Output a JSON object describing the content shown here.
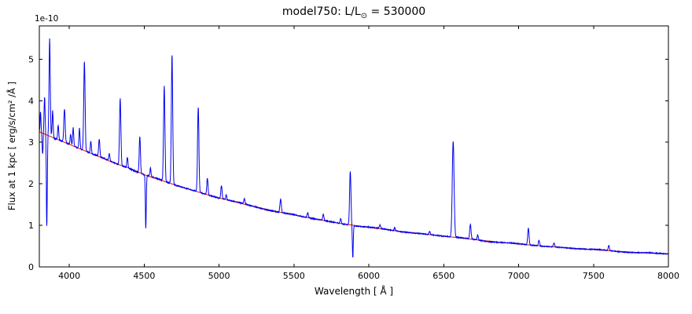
{
  "title_parts": {
    "main": "model750: L/L",
    "sub": "⊙",
    "rest": " = 530000"
  },
  "chart_data": {
    "type": "line",
    "title": "model750: L/L⊙ = 530000",
    "xlabel": "Wavelength [ Å ]",
    "ylabel": "Flux at 1 kpc [ erg/s/cm² /Å ]",
    "offset_text": "1e-10",
    "xlim": [
      3800,
      8000
    ],
    "ylim": [
      0,
      5.8
    ],
    "x_ticks": [
      4000,
      4500,
      5000,
      5500,
      6000,
      6500,
      7000,
      7500,
      8000
    ],
    "y_ticks": [
      0,
      1,
      2,
      3,
      4,
      5
    ],
    "grid": false,
    "legend": null,
    "series": [
      {
        "name": "spectrum",
        "color": "#0000ee",
        "description": "blue stellar spectrum = continuum + gaussian emission/absorption lines + noise"
      },
      {
        "name": "continuum",
        "color": "#ff1a00",
        "description": "smooth red continuum fit declining from ~3.25e-10 at 3800 Å to ~0.31e-10 at 8000 Å"
      }
    ],
    "continuum_points": [
      [
        3800,
        3.25
      ],
      [
        3900,
        3.1
      ],
      [
        4000,
        2.95
      ],
      [
        4100,
        2.8
      ],
      [
        4200,
        2.65
      ],
      [
        4300,
        2.5
      ],
      [
        4400,
        2.38
      ],
      [
        4500,
        2.22
      ],
      [
        4600,
        2.1
      ],
      [
        4700,
        1.98
      ],
      [
        4800,
        1.87
      ],
      [
        4900,
        1.76
      ],
      [
        5000,
        1.66
      ],
      [
        5200,
        1.48
      ],
      [
        5400,
        1.32
      ],
      [
        5600,
        1.18
      ],
      [
        5800,
        1.05
      ],
      [
        6000,
        0.95
      ],
      [
        6200,
        0.86
      ],
      [
        6400,
        0.78
      ],
      [
        6600,
        0.7
      ],
      [
        6800,
        0.62
      ],
      [
        7000,
        0.55
      ],
      [
        7200,
        0.49
      ],
      [
        7400,
        0.44
      ],
      [
        7600,
        0.39
      ],
      [
        7800,
        0.345
      ],
      [
        8000,
        0.31
      ]
    ],
    "emission_lines": [
      [
        3808,
        0.5,
        3.0
      ],
      [
        3822,
        -0.5,
        3.0
      ],
      [
        3835,
        0.9,
        3.5
      ],
      [
        3850,
        -2.2,
        3.0
      ],
      [
        3869,
        2.35,
        4.0
      ],
      [
        3889,
        0.65,
        3.5
      ],
      [
        3926,
        0.35,
        3.5
      ],
      [
        3968,
        0.8,
        4.5
      ],
      [
        4009,
        0.25,
        3.5
      ],
      [
        4026,
        0.45,
        3.5
      ],
      [
        4068,
        0.5,
        3.5
      ],
      [
        4101,
        2.15,
        4.5
      ],
      [
        4144,
        0.28,
        3.5
      ],
      [
        4200,
        0.42,
        4.0
      ],
      [
        4267,
        0.18,
        3.5
      ],
      [
        4340,
        1.62,
        4.5
      ],
      [
        4388,
        0.25,
        3.5
      ],
      [
        4471,
        0.88,
        4.0
      ],
      [
        4511,
        -1.28,
        3.0
      ],
      [
        4542,
        0.2,
        3.5
      ],
      [
        4634,
        2.3,
        4.5
      ],
      [
        4686,
        3.1,
        4.5
      ],
      [
        4861,
        2.05,
        4.5
      ],
      [
        4922,
        0.4,
        4.0
      ],
      [
        5016,
        0.32,
        4.0
      ],
      [
        5048,
        0.12,
        3.5
      ],
      [
        5169,
        0.12,
        4.0
      ],
      [
        5411,
        0.32,
        4.5
      ],
      [
        5592,
        0.12,
        4.0
      ],
      [
        5696,
        0.15,
        4.0
      ],
      [
        5812,
        0.12,
        4.0
      ],
      [
        5876,
        1.3,
        4.5
      ],
      [
        5893,
        -0.78,
        3.0
      ],
      [
        6074,
        0.08,
        4.0
      ],
      [
        6173,
        0.07,
        4.0
      ],
      [
        6406,
        0.08,
        4.0
      ],
      [
        6563,
        2.3,
        6.0
      ],
      [
        6678,
        0.35,
        4.5
      ],
      [
        6727,
        0.12,
        4.0
      ],
      [
        7065,
        0.4,
        4.5
      ],
      [
        7136,
        0.14,
        4.0
      ],
      [
        7236,
        0.1,
        4.0
      ],
      [
        7602,
        0.12,
        4.0
      ]
    ]
  }
}
